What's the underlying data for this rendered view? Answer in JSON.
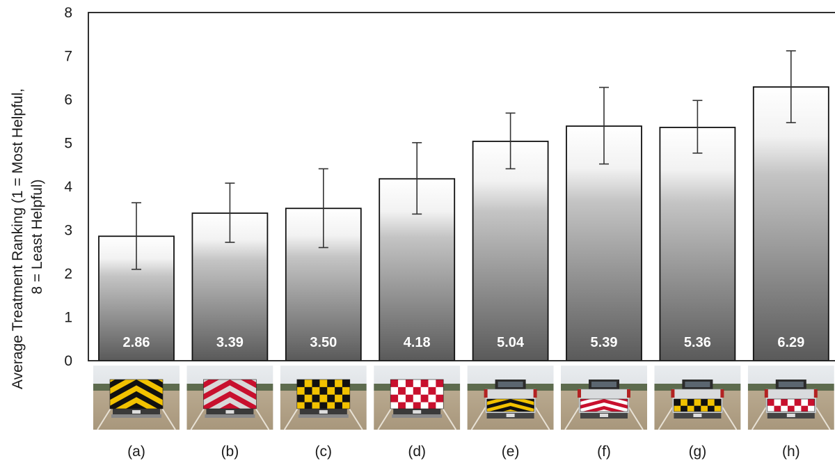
{
  "chart_data": {
    "type": "bar",
    "categories": [
      "(a)",
      "(b)",
      "(c)",
      "(d)",
      "(e)",
      "(f)",
      "(g)",
      "(h)"
    ],
    "values": [
      2.86,
      3.39,
      3.5,
      4.18,
      5.04,
      5.39,
      5.36,
      6.29
    ],
    "value_labels": [
      "2.86",
      "3.39",
      "3.50",
      "4.18",
      "5.04",
      "5.39",
      "5.36",
      "6.29"
    ],
    "error_low": [
      2.1,
      2.72,
      2.6,
      3.37,
      4.41,
      4.52,
      4.77,
      5.47
    ],
    "error_high": [
      3.63,
      4.08,
      4.41,
      5.01,
      5.69,
      6.28,
      5.98,
      7.12
    ],
    "ylabel_lines": [
      "Average Treatment Ranking (1 = Most Helpful,",
      "8 = Least Helpful)"
    ],
    "ylim": [
      0,
      8
    ],
    "yticks": [
      0,
      1,
      2,
      3,
      4,
      5,
      6,
      7,
      8
    ],
    "grid": false,
    "treatment_photos": [
      {
        "pattern": "chevron",
        "colors": [
          "#f2c200",
          "#111111"
        ]
      },
      {
        "pattern": "chevron",
        "colors": [
          "#d8d8d8",
          "#c8102e"
        ]
      },
      {
        "pattern": "checker",
        "colors": [
          "#f2c200",
          "#111111"
        ]
      },
      {
        "pattern": "checker",
        "colors": [
          "#ffffff",
          "#c8102e"
        ]
      },
      {
        "pattern": "chevron-band",
        "colors": [
          "#f2c200",
          "#111111"
        ]
      },
      {
        "pattern": "chevron-band",
        "colors": [
          "#ffffff",
          "#c8102e"
        ]
      },
      {
        "pattern": "checker-band",
        "colors": [
          "#f2c200",
          "#111111"
        ]
      },
      {
        "pattern": "checker-band",
        "colors": [
          "#ffffff",
          "#c8102e"
        ]
      }
    ]
  }
}
